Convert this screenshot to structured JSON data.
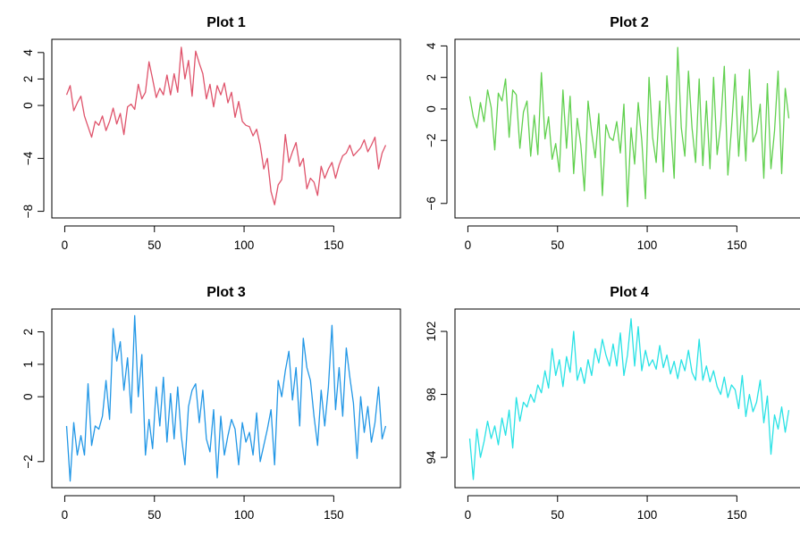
{
  "chart_data": [
    {
      "type": "line",
      "title": "Plot 1",
      "color": "#DF536B",
      "xlim": [
        0,
        180
      ],
      "ylim": [
        -8,
        4.5
      ],
      "xticks": [
        0,
        50,
        100,
        150
      ],
      "xtick_labels": [
        "0",
        "50",
        "100",
        "150"
      ],
      "yticks": [
        -8,
        -4,
        0,
        2,
        4
      ],
      "ytick_labels": [
        "−8",
        "−4",
        "0",
        "2",
        "4"
      ],
      "series": [
        {
          "x": [
            1,
            3,
            5,
            7,
            9,
            11,
            13,
            15,
            17,
            19,
            21,
            23,
            25,
            27,
            29,
            31,
            33,
            35,
            37,
            39,
            41,
            43,
            45,
            47,
            49,
            51,
            53,
            55,
            57,
            59,
            61,
            63,
            65,
            67,
            69,
            71,
            73,
            75,
            77,
            79,
            81,
            83,
            85,
            87,
            89,
            91,
            93,
            95,
            97,
            99,
            101,
            103,
            105,
            107,
            109,
            111,
            113,
            115,
            117,
            119,
            121,
            123,
            125,
            127,
            129,
            131,
            133,
            135,
            137,
            139,
            141,
            143,
            145,
            147,
            149,
            151,
            153,
            155,
            157,
            159,
            161,
            163,
            165,
            167,
            169,
            171,
            173,
            175,
            177,
            179
          ],
          "y": [
            0.8,
            1.5,
            -0.4,
            0.2,
            0.7,
            -0.8,
            -1.6,
            -2.4,
            -1.2,
            -1.5,
            -0.8,
            -1.9,
            -1.2,
            -0.2,
            -1.4,
            -0.6,
            -2.2,
            -0.1,
            0.1,
            -0.3,
            1.6,
            0.5,
            1.0,
            3.3,
            2.0,
            0.6,
            1.3,
            0.8,
            2.3,
            0.8,
            2.4,
            1.0,
            4.4,
            2.0,
            3.4,
            0.7,
            4.1,
            3.2,
            2.4,
            0.5,
            1.6,
            -0.1,
            1.5,
            0.8,
            1.7,
            0.2,
            1.0,
            -0.9,
            0.3,
            -1.2,
            -1.5,
            -1.6,
            -2.3,
            -1.8,
            -3.0,
            -4.8,
            -4.0,
            -6.5,
            -7.5,
            -6.0,
            -5.6,
            -2.2,
            -4.3,
            -3.5,
            -2.8,
            -4.6,
            -4.0,
            -6.3,
            -5.5,
            -5.8,
            -6.8,
            -4.6,
            -5.5,
            -4.8,
            -4.3,
            -5.5,
            -4.5,
            -3.8,
            -3.6,
            -3.0,
            -3.8,
            -3.5,
            -3.2,
            -2.6,
            -3.5,
            -3.0,
            -2.4,
            -4.8,
            -3.6,
            -3.0
          ]
        }
      ]
    },
    {
      "type": "line",
      "title": "Plot 2",
      "color": "#61D04F",
      "xlim": [
        0,
        180
      ],
      "ylim": [
        -6.5,
        4
      ],
      "xticks": [
        0,
        50,
        100,
        150
      ],
      "xtick_labels": [
        "0",
        "50",
        "100",
        "150"
      ],
      "yticks": [
        -6,
        -2,
        0,
        2,
        4
      ],
      "ytick_labels": [
        "−6",
        "−2",
        "0",
        "2",
        "4"
      ],
      "series": [
        {
          "x": [
            1,
            3,
            5,
            7,
            9,
            11,
            13,
            15,
            17,
            19,
            21,
            23,
            25,
            27,
            29,
            31,
            33,
            35,
            37,
            39,
            41,
            43,
            45,
            47,
            49,
            51,
            53,
            55,
            57,
            59,
            61,
            63,
            65,
            67,
            69,
            71,
            73,
            75,
            77,
            79,
            81,
            83,
            85,
            87,
            89,
            91,
            93,
            95,
            97,
            99,
            101,
            103,
            105,
            107,
            109,
            111,
            113,
            115,
            117,
            119,
            121,
            123,
            125,
            127,
            129,
            131,
            133,
            135,
            137,
            139,
            141,
            143,
            145,
            147,
            149,
            151,
            153,
            155,
            157,
            159,
            161,
            163,
            165,
            167,
            169,
            171,
            173,
            175,
            177,
            179
          ],
          "y": [
            0.8,
            -0.5,
            -1.2,
            0.4,
            -0.8,
            1.2,
            0.1,
            -2.6,
            1.0,
            0.5,
            1.9,
            -1.8,
            1.2,
            0.9,
            -2.5,
            -0.2,
            0.5,
            -3.0,
            -0.4,
            -2.9,
            2.3,
            -1.9,
            -0.5,
            -3.2,
            -2.2,
            -4.0,
            1.2,
            -2.5,
            0.8,
            -4.1,
            -0.6,
            -2.3,
            -5.2,
            0.5,
            -1.5,
            -3.1,
            -0.3,
            -5.5,
            -1.0,
            -1.8,
            -2.0,
            -0.8,
            -2.8,
            0.3,
            -6.2,
            -1.2,
            -3.5,
            0.4,
            -2.0,
            -5.7,
            2.0,
            -1.8,
            -3.4,
            0.5,
            -4.0,
            2.1,
            -0.8,
            -4.4,
            3.9,
            -1.2,
            -3.0,
            2.4,
            -1.2,
            -3.4,
            1.9,
            -3.6,
            0.5,
            -3.8,
            2.0,
            -2.9,
            -1.0,
            2.7,
            -4.2,
            -1.2,
            2.2,
            -3.0,
            0.8,
            -3.3,
            2.5,
            -2.1,
            -1.5,
            0.3,
            -4.4,
            1.6,
            -3.8,
            -1.4,
            2.4,
            -4.1,
            1.3,
            -0.6
          ]
        }
      ]
    },
    {
      "type": "line",
      "title": "Plot 3",
      "color": "#2297E6",
      "xlim": [
        0,
        180
      ],
      "ylim": [
        -2.6,
        2.5
      ],
      "xticks": [
        0,
        50,
        100,
        150
      ],
      "xtick_labels": [
        "0",
        "50",
        "100",
        "150"
      ],
      "yticks": [
        -2,
        0,
        1,
        2
      ],
      "ytick_labels": [
        "−2",
        "0",
        "1",
        "2"
      ],
      "series": [
        {
          "x": [
            1,
            3,
            5,
            7,
            9,
            11,
            13,
            15,
            17,
            19,
            21,
            23,
            25,
            27,
            29,
            31,
            33,
            35,
            37,
            39,
            41,
            43,
            45,
            47,
            49,
            51,
            53,
            55,
            57,
            59,
            61,
            63,
            65,
            67,
            69,
            71,
            73,
            75,
            77,
            79,
            81,
            83,
            85,
            87,
            89,
            91,
            93,
            95,
            97,
            99,
            101,
            103,
            105,
            107,
            109,
            111,
            113,
            115,
            117,
            119,
            121,
            123,
            125,
            127,
            129,
            131,
            133,
            135,
            137,
            139,
            141,
            143,
            145,
            147,
            149,
            151,
            153,
            155,
            157,
            159,
            161,
            163,
            165,
            167,
            169,
            171,
            173,
            175,
            177,
            179
          ],
          "y": [
            -0.9,
            -2.6,
            -0.8,
            -1.8,
            -1.2,
            -1.8,
            0.4,
            -1.5,
            -0.9,
            -1.0,
            -0.6,
            0.5,
            -0.7,
            2.1,
            1.1,
            1.7,
            0.2,
            1.2,
            -0.5,
            2.5,
            0.0,
            1.3,
            -1.8,
            -0.7,
            -1.6,
            0.3,
            -0.9,
            0.6,
            -1.4,
            0.1,
            -1.3,
            0.3,
            -1.2,
            -2.1,
            -0.3,
            0.2,
            0.4,
            -0.8,
            0.2,
            -1.3,
            -1.7,
            -0.4,
            -2.5,
            -0.6,
            -1.8,
            -1.2,
            -0.7,
            -1.0,
            -2.1,
            -0.8,
            -1.4,
            -1.1,
            -1.8,
            -0.5,
            -2.0,
            -1.5,
            -1.0,
            -0.4,
            -2.1,
            0.5,
            0.0,
            0.8,
            1.4,
            -0.1,
            0.9,
            -0.9,
            1.8,
            0.9,
            0.5,
            -0.6,
            -1.5,
            0.2,
            -0.9,
            0.3,
            2.2,
            -0.4,
            0.9,
            -0.6,
            1.5,
            0.6,
            -0.2,
            -1.9,
            0.0,
            -1.1,
            -0.3,
            -1.4,
            -0.8,
            0.3,
            -1.3,
            -0.9
          ]
        }
      ]
    },
    {
      "type": "line",
      "title": "Plot 4",
      "color": "#28E2E5",
      "xlim": [
        0,
        180
      ],
      "ylim": [
        92.5,
        103
      ],
      "xticks": [
        0,
        50,
        100,
        150
      ],
      "xtick_labels": [
        "0",
        "50",
        "100",
        "150"
      ],
      "yticks": [
        94,
        98,
        102
      ],
      "ytick_labels": [
        "94",
        "98",
        "102"
      ],
      "series": [
        {
          "x": [
            1,
            3,
            5,
            7,
            9,
            11,
            13,
            15,
            17,
            19,
            21,
            23,
            25,
            27,
            29,
            31,
            33,
            35,
            37,
            39,
            41,
            43,
            45,
            47,
            49,
            51,
            53,
            55,
            57,
            59,
            61,
            63,
            65,
            67,
            69,
            71,
            73,
            75,
            77,
            79,
            81,
            83,
            85,
            87,
            89,
            91,
            93,
            95,
            97,
            99,
            101,
            103,
            105,
            107,
            109,
            111,
            113,
            115,
            117,
            119,
            121,
            123,
            125,
            127,
            129,
            131,
            133,
            135,
            137,
            139,
            141,
            143,
            145,
            147,
            149,
            151,
            153,
            155,
            157,
            159,
            161,
            163,
            165,
            167,
            169,
            171,
            173,
            175,
            177,
            179
          ],
          "y": [
            95.2,
            92.6,
            95.8,
            94.0,
            95.0,
            96.3,
            95.2,
            96.0,
            94.8,
            96.5,
            95.4,
            97.0,
            94.6,
            97.8,
            96.3,
            97.5,
            97.2,
            98.0,
            97.5,
            98.6,
            98.1,
            99.5,
            98.4,
            100.9,
            99.2,
            100.2,
            98.5,
            100.4,
            99.4,
            102.0,
            98.9,
            99.7,
            98.7,
            100.2,
            99.2,
            100.9,
            100.0,
            101.5,
            100.5,
            99.8,
            101.2,
            99.8,
            101.9,
            99.2,
            100.5,
            102.8,
            99.8,
            102.3,
            99.5,
            100.8,
            99.8,
            100.2,
            99.6,
            101.1,
            99.7,
            100.5,
            99.3,
            100.1,
            99.0,
            100.2,
            99.5,
            100.8,
            99.4,
            98.9,
            101.5,
            98.9,
            99.8,
            98.8,
            99.5,
            98.5,
            98.0,
            99.1,
            97.8,
            98.6,
            98.3,
            97.1,
            99.2,
            96.6,
            98.0,
            96.9,
            97.5,
            98.9,
            96.2,
            97.9,
            94.2,
            96.7,
            95.8,
            97.2,
            95.6,
            97.0
          ]
        }
      ]
    }
  ]
}
